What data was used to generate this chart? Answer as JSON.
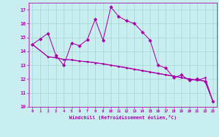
{
  "xlabel": "Windchill (Refroidissement éolien,°C)",
  "xlim": [
    -0.5,
    23.5
  ],
  "ylim": [
    10,
    17.5
  ],
  "yticks": [
    10,
    11,
    12,
    13,
    14,
    15,
    16,
    17
  ],
  "xticks": [
    0,
    1,
    2,
    3,
    4,
    5,
    6,
    7,
    8,
    9,
    10,
    11,
    12,
    13,
    14,
    15,
    16,
    17,
    18,
    19,
    20,
    21,
    22,
    23
  ],
  "bg_color": "#c8eef0",
  "line_color": "#aa00aa",
  "series1_x": [
    0,
    1,
    2,
    3,
    4,
    5,
    6,
    7,
    8,
    9,
    10,
    11,
    12,
    13,
    14,
    15,
    16,
    17,
    18,
    19,
    20,
    21,
    22,
    23
  ],
  "series1_y": [
    14.5,
    14.9,
    15.3,
    13.7,
    13.0,
    14.6,
    14.4,
    14.85,
    16.3,
    14.8,
    17.2,
    16.5,
    16.2,
    16.0,
    15.4,
    14.8,
    13.0,
    12.8,
    12.1,
    12.3,
    11.9,
    12.0,
    11.85,
    10.4
  ],
  "series2_x": [
    0,
    2,
    3,
    4,
    5,
    6,
    7,
    8,
    9,
    10,
    11,
    12,
    13,
    14,
    15,
    16,
    17,
    18,
    19,
    20,
    21,
    22,
    23
  ],
  "series2_y": [
    14.5,
    13.6,
    13.55,
    13.4,
    13.38,
    13.3,
    13.25,
    13.18,
    13.1,
    13.0,
    12.92,
    12.83,
    12.72,
    12.62,
    12.52,
    12.42,
    12.32,
    12.22,
    12.12,
    12.02,
    11.92,
    11.85,
    10.4
  ],
  "series3_x": [
    0,
    2,
    3,
    4,
    5,
    6,
    7,
    8,
    9,
    10,
    11,
    12,
    13,
    14,
    15,
    16,
    17,
    18,
    19,
    20,
    21,
    22,
    23
  ],
  "series3_y": [
    14.5,
    13.6,
    13.55,
    13.42,
    13.38,
    13.3,
    13.25,
    13.18,
    13.1,
    13.0,
    12.9,
    12.8,
    12.7,
    12.6,
    12.5,
    12.4,
    12.3,
    12.2,
    12.1,
    12.0,
    11.9,
    12.1,
    10.4
  ]
}
